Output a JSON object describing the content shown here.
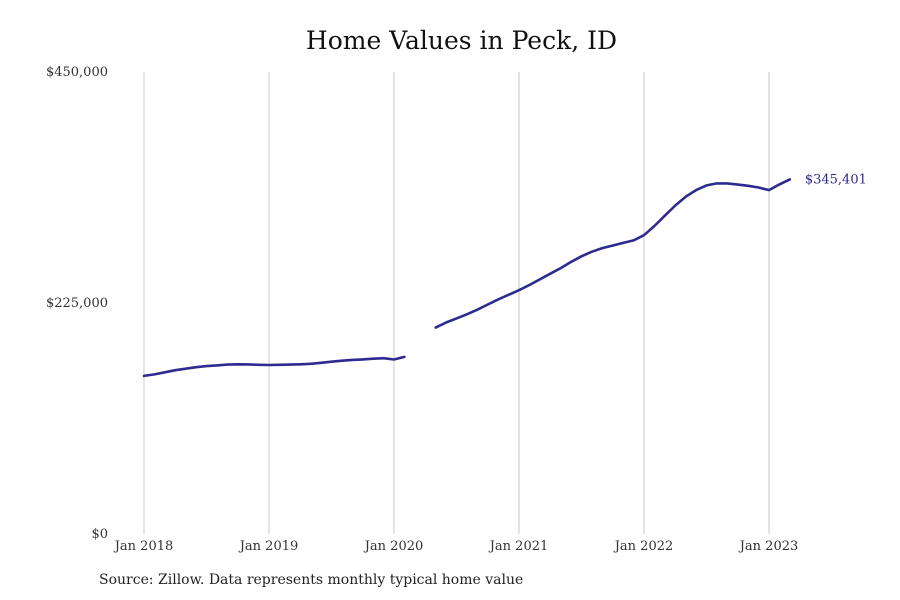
{
  "chart_data": {
    "type": "line",
    "title": "Home Values in Peck, ID",
    "xlabel": "",
    "ylabel": "",
    "ylim": [
      0,
      450000
    ],
    "xlim": [
      "2018-01",
      "2023-06"
    ],
    "grid": "vertical",
    "legend": "none",
    "line_color": "#2e2a8f",
    "grid_color": "#c8c8c8",
    "y_ticks": [
      {
        "value": 0,
        "label": "$0"
      },
      {
        "value": 225000,
        "label": "$225,000"
      },
      {
        "value": 450000,
        "label": "$450,000"
      }
    ],
    "x_ticks": [
      {
        "value": "2018-01",
        "label": "Jan 2018"
      },
      {
        "value": "2019-01",
        "label": "Jan 2019"
      },
      {
        "value": "2020-01",
        "label": "Jan 2020"
      },
      {
        "value": "2021-01",
        "label": "Jan 2021"
      },
      {
        "value": "2022-01",
        "label": "Jan 2022"
      },
      {
        "value": "2023-01",
        "label": "Jan 2023"
      }
    ],
    "series": [
      {
        "segments": [
          [
            {
              "x": "2018-01",
              "y": 154000
            },
            {
              "x": "2018-02",
              "y": 155500
            },
            {
              "x": "2018-03",
              "y": 157500
            },
            {
              "x": "2018-04",
              "y": 159500
            },
            {
              "x": "2018-05",
              "y": 161000
            },
            {
              "x": "2018-06",
              "y": 162500
            },
            {
              "x": "2018-07",
              "y": 163500
            },
            {
              "x": "2018-08",
              "y": 164200
            },
            {
              "x": "2018-09",
              "y": 165000
            },
            {
              "x": "2018-10",
              "y": 165300
            },
            {
              "x": "2018-11",
              "y": 165200
            },
            {
              "x": "2018-12",
              "y": 164800
            },
            {
              "x": "2019-01",
              "y": 164600
            },
            {
              "x": "2019-02",
              "y": 164800
            },
            {
              "x": "2019-03",
              "y": 165000
            },
            {
              "x": "2019-04",
              "y": 165300
            },
            {
              "x": "2019-05",
              "y": 165800
            },
            {
              "x": "2019-06",
              "y": 166800
            },
            {
              "x": "2019-07",
              "y": 167800
            },
            {
              "x": "2019-08",
              "y": 168800
            },
            {
              "x": "2019-09",
              "y": 169600
            },
            {
              "x": "2019-10",
              "y": 170100
            },
            {
              "x": "2019-11",
              "y": 170700
            },
            {
              "x": "2019-12",
              "y": 171200
            },
            {
              "x": "2020-01",
              "y": 170000
            },
            {
              "x": "2020-02",
              "y": 172500
            }
          ],
          [
            {
              "x": "2020-05",
              "y": 201000
            },
            {
              "x": "2020-06",
              "y": 206000
            },
            {
              "x": "2020-07",
              "y": 210000
            },
            {
              "x": "2020-08",
              "y": 214000
            },
            {
              "x": "2020-09",
              "y": 218500
            },
            {
              "x": "2020-10",
              "y": 223500
            },
            {
              "x": "2020-11",
              "y": 228500
            },
            {
              "x": "2020-12",
              "y": 233000
            },
            {
              "x": "2021-01",
              "y": 237500
            },
            {
              "x": "2021-02",
              "y": 242500
            },
            {
              "x": "2021-03",
              "y": 248000
            },
            {
              "x": "2021-04",
              "y": 253500
            },
            {
              "x": "2021-05",
              "y": 259000
            },
            {
              "x": "2021-06",
              "y": 265000
            },
            {
              "x": "2021-07",
              "y": 270500
            },
            {
              "x": "2021-08",
              "y": 275000
            },
            {
              "x": "2021-09",
              "y": 278500
            },
            {
              "x": "2021-10",
              "y": 281000
            },
            {
              "x": "2021-11",
              "y": 283500
            },
            {
              "x": "2021-12",
              "y": 286000
            },
            {
              "x": "2022-01",
              "y": 291000
            },
            {
              "x": "2022-02",
              "y": 300000
            },
            {
              "x": "2022-03",
              "y": 310000
            },
            {
              "x": "2022-04",
              "y": 320000
            },
            {
              "x": "2022-05",
              "y": 328500
            },
            {
              "x": "2022-06",
              "y": 335000
            },
            {
              "x": "2022-07",
              "y": 339500
            },
            {
              "x": "2022-08",
              "y": 341500
            },
            {
              "x": "2022-09",
              "y": 341500
            },
            {
              "x": "2022-10",
              "y": 340300
            },
            {
              "x": "2022-11",
              "y": 339200
            },
            {
              "x": "2022-12",
              "y": 337500
            },
            {
              "x": "2023-01",
              "y": 335000
            },
            {
              "x": "2023-02",
              "y": 340500
            },
            {
              "x": "2023-03",
              "y": 345401
            }
          ]
        ]
      }
    ],
    "end_label": "$345,401"
  },
  "source_note": "Source: Zillow. Data represents monthly typical home value"
}
